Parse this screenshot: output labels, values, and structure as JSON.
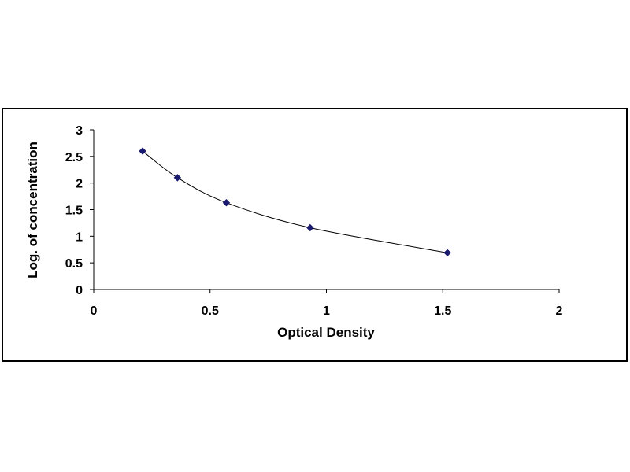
{
  "chart_data": {
    "type": "scatter",
    "title": "",
    "xlabel": "Optical Density",
    "ylabel": "Log. of concentration",
    "xlim": [
      0,
      2
    ],
    "ylim": [
      0,
      3
    ],
    "x_ticks": [
      "0",
      "0.5",
      "1",
      "1.5",
      "2"
    ],
    "y_ticks": [
      "0",
      "0.5",
      "1",
      "1.5",
      "2",
      "2.5",
      "3"
    ],
    "grid": false,
    "legend": "none",
    "series": [
      {
        "x": [
          0.21,
          0.36,
          0.57,
          0.93,
          1.52
        ],
        "y": [
          2.6,
          2.1,
          1.63,
          1.16,
          0.69
        ],
        "marker": "diamond",
        "line": "smooth",
        "color": "#1a1a6e",
        "line_color": "#000000"
      }
    ]
  }
}
